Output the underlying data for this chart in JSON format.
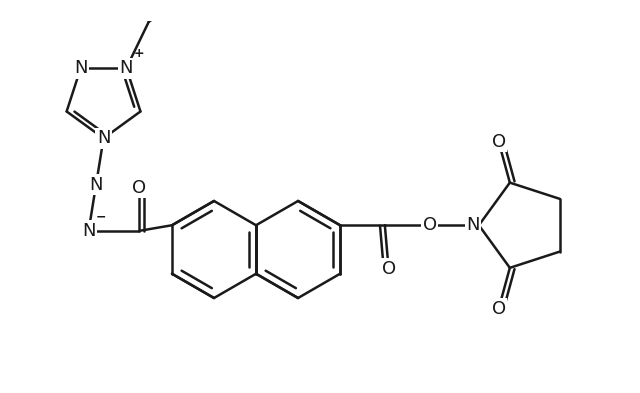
{
  "bg_color": "#ffffff",
  "line_color": "#1a1a1a",
  "line_width": 1.8,
  "font_size": 13,
  "figsize": [
    6.4,
    3.93
  ],
  "dpi": 100,
  "xlim": [
    0.0,
    8.5
  ],
  "ylim": [
    0.5,
    5.2
  ]
}
